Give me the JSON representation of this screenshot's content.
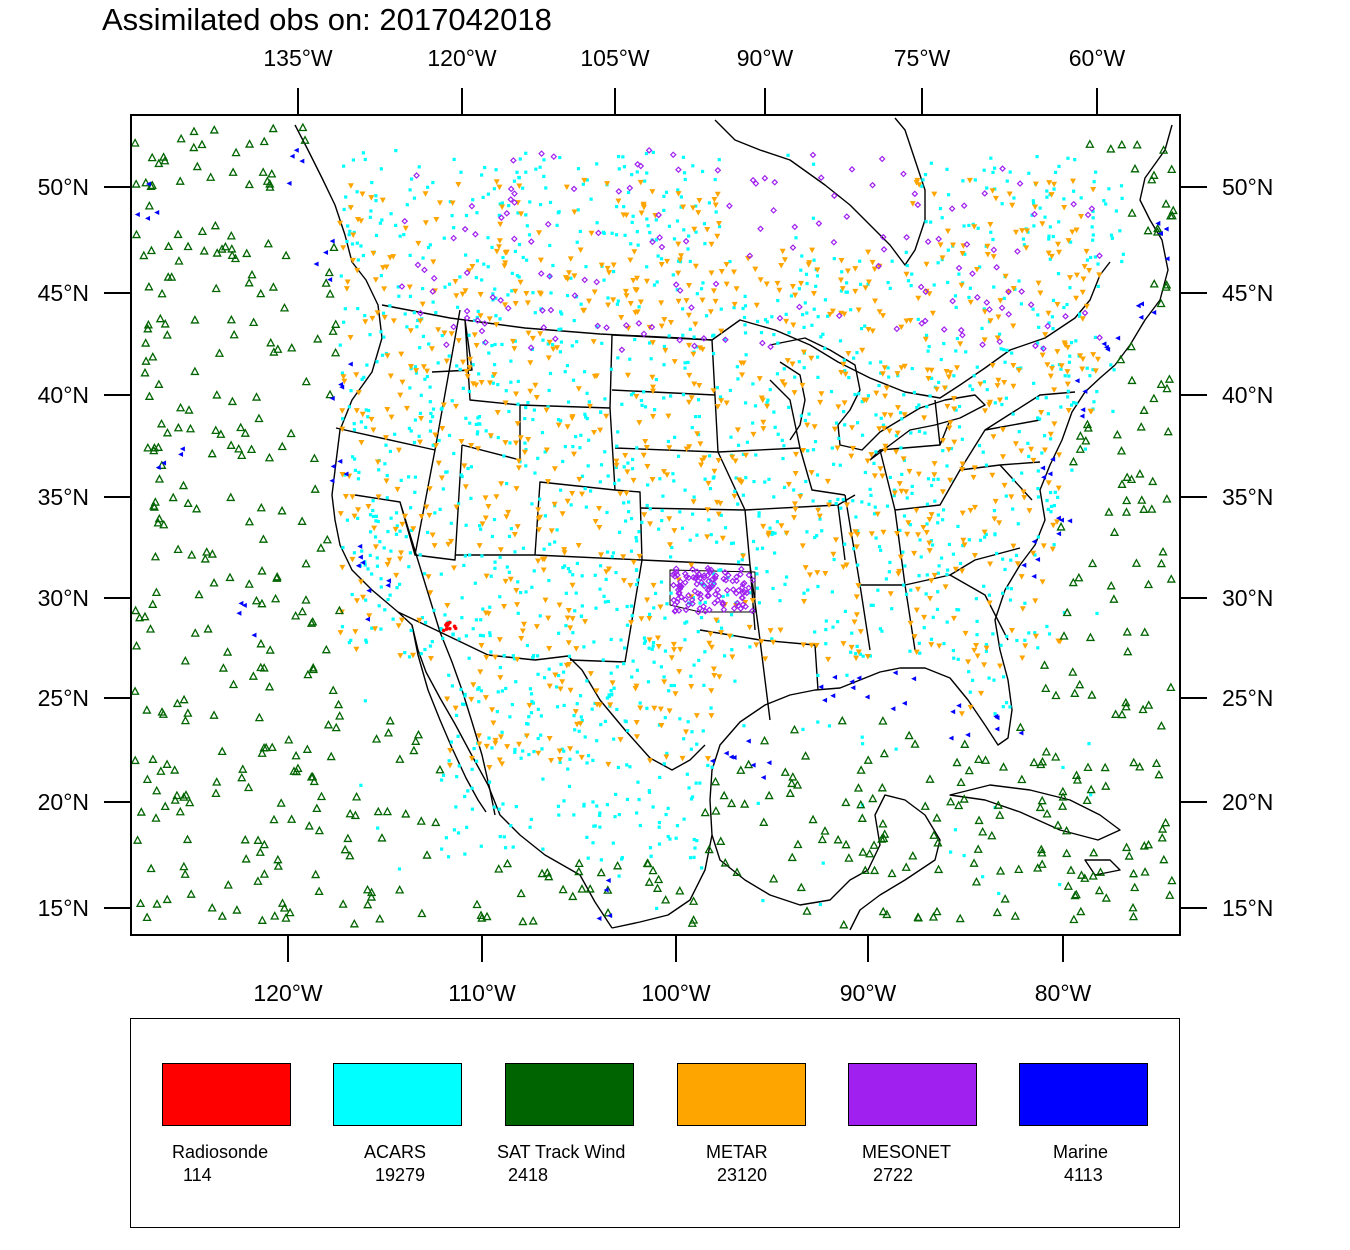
{
  "title": "Assimilated obs on: 2017042018",
  "axes": {
    "top_ticks": [
      "135°W",
      "120°W",
      "105°W",
      "90°W",
      "75°W",
      "60°W"
    ],
    "bottom_ticks": [
      "120°W",
      "110°W",
      "100°W",
      "90°W",
      "80°W"
    ],
    "lat_ticks": [
      "50°N",
      "45°N",
      "40°N",
      "35°N",
      "30°N",
      "25°N",
      "20°N",
      "15°N"
    ]
  },
  "legend": [
    {
      "name": "Radiosonde",
      "count": "114",
      "color": "#ff0000",
      "marker": "small-dot"
    },
    {
      "name": "ACARS",
      "count": "19279",
      "color": "#00ffff",
      "marker": "square-dot"
    },
    {
      "name": "SAT Track Wind",
      "count": "2418",
      "color": "#006400",
      "marker": "open-triangle-up"
    },
    {
      "name": "METAR",
      "count": "23120",
      "color": "#ffa500",
      "marker": "filled-triangle-down"
    },
    {
      "name": "MESONET",
      "count": "2722",
      "color": "#a020f0",
      "marker": "open-diamond"
    },
    {
      "name": "Marine",
      "count": "4113",
      "color": "#0000ff",
      "marker": "filled-triangle-left"
    }
  ],
  "map": {
    "region": "Continental United States, southern Canada, Mexico, Gulf of Mexico, Caribbean",
    "boundary_color": "#000000",
    "background_color": "#ffffff"
  }
}
